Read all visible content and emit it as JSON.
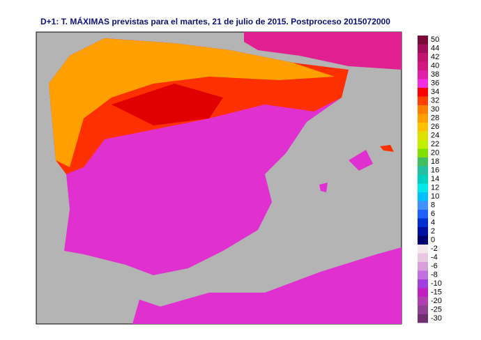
{
  "title": "D+1: T. MÁXIMAS previstas para el martes, 21 de julio de 2015. Postproceso 2015072000",
  "legend": {
    "positive": [
      {
        "label": 50,
        "color": "#7a0a3a"
      },
      {
        "label": 44,
        "color": "#a0105a"
      },
      {
        "label": 42,
        "color": "#c01470"
      },
      {
        "label": 40,
        "color": "#d0187e"
      },
      {
        "label": 38,
        "color": "#e020a8"
      },
      {
        "label": 36,
        "color": "#f030e0"
      },
      {
        "label": 34,
        "color": "#ff0000"
      },
      {
        "label": 32,
        "color": "#ff4000"
      },
      {
        "label": 30,
        "color": "#ff8000"
      },
      {
        "label": 28,
        "color": "#ffa000"
      },
      {
        "label": 26,
        "color": "#ffc000"
      },
      {
        "label": 24,
        "color": "#e0e000"
      },
      {
        "label": 22,
        "color": "#c0f000"
      },
      {
        "label": 20,
        "color": "#80e000"
      },
      {
        "label": 18,
        "color": "#40c060"
      },
      {
        "label": 16,
        "color": "#20c0a0"
      },
      {
        "label": 14,
        "color": "#00d0c0"
      },
      {
        "label": 12,
        "color": "#00e8e8"
      },
      {
        "label": 10,
        "color": "#00c0ff"
      },
      {
        "label": 8,
        "color": "#4090ff"
      },
      {
        "label": 6,
        "color": "#2060ff"
      },
      {
        "label": 4,
        "color": "#0030d0"
      },
      {
        "label": 2,
        "color": "#0010a0"
      },
      {
        "label": 0,
        "color": "#000070"
      }
    ],
    "negative": [
      {
        "label": -2,
        "color": "#f4e8ee"
      },
      {
        "label": -4,
        "color": "#e8c8e0"
      },
      {
        "label": -6,
        "color": "#d8a0d8"
      },
      {
        "label": -8,
        "color": "#c070e0"
      },
      {
        "label": -10,
        "color": "#a040e0"
      },
      {
        "label": -15,
        "color": "#c020c0"
      },
      {
        "label": -20,
        "color": "#b040b0"
      },
      {
        "label": -25,
        "color": "#904090"
      },
      {
        "label": -30,
        "color": "#703070"
      }
    ]
  }
}
